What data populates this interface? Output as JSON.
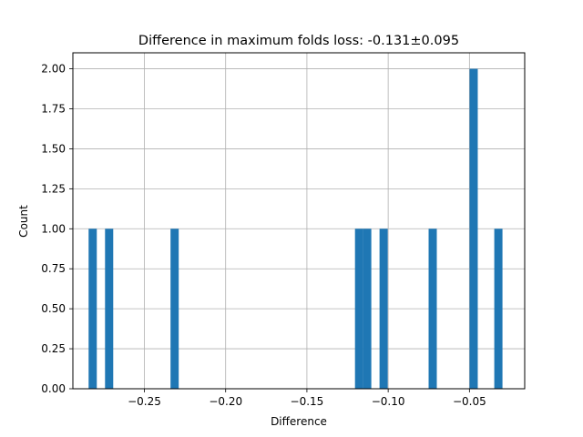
{
  "chart_data": {
    "type": "bar",
    "title": "Difference in maximum folds loss: -0.131±0.095",
    "xlabel": "Difference",
    "ylabel": "Count",
    "xlim": [
      -0.294,
      -0.016
    ],
    "ylim": [
      0,
      2.1
    ],
    "grid": true,
    "bin_width": 0.00504,
    "x_ticks": [
      -0.25,
      -0.2,
      -0.15,
      -0.1,
      -0.05
    ],
    "x_tick_labels": [
      "−0.25",
      "−0.20",
      "−0.15",
      "−0.10",
      "−0.05"
    ],
    "y_ticks": [
      0,
      0.25,
      0.5,
      0.75,
      1.0,
      1.25,
      1.5,
      1.75,
      2.0
    ],
    "y_tick_labels": [
      "0.00",
      "0.25",
      "0.50",
      "0.75",
      "1.00",
      "1.25",
      "1.50",
      "1.75",
      "2.00"
    ],
    "bins": [
      {
        "x": -0.2818,
        "count": 1
      },
      {
        "x": -0.2717,
        "count": 1
      },
      {
        "x": -0.2314,
        "count": 1
      },
      {
        "x": -0.1179,
        "count": 1
      },
      {
        "x": -0.1129,
        "count": 1
      },
      {
        "x": -0.1028,
        "count": 1
      },
      {
        "x": -0.0726,
        "count": 1
      },
      {
        "x": -0.0474,
        "count": 2
      },
      {
        "x": -0.0322,
        "count": 1
      }
    ],
    "bar_color": "#1f77b4",
    "grid_color": "#b0b0b0"
  }
}
